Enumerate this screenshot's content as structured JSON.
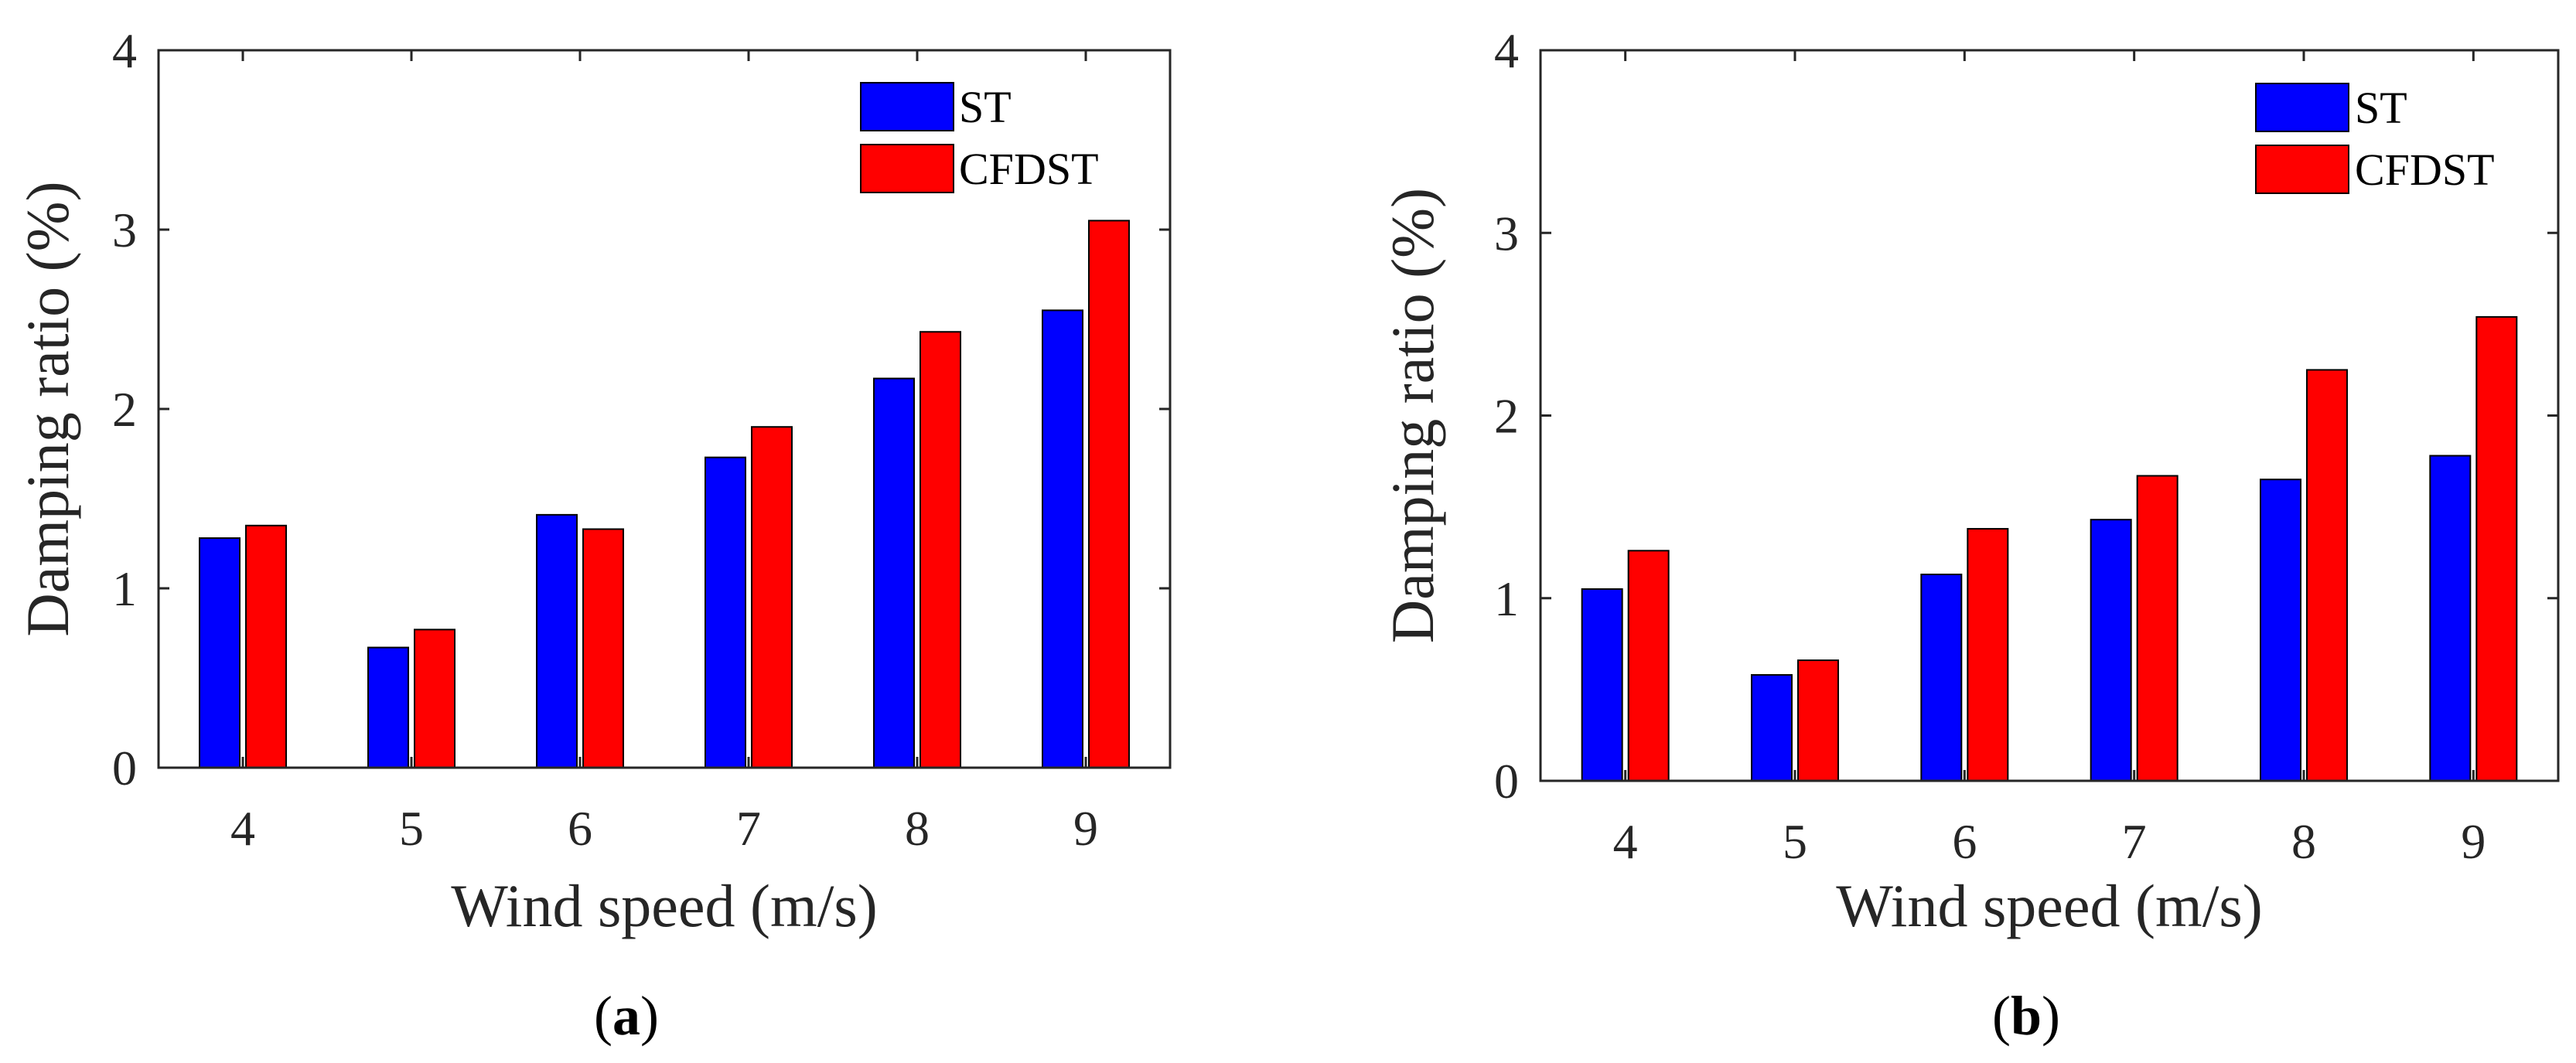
{
  "chart_data": [
    {
      "type": "bar",
      "panel": "a",
      "categories": [
        "4",
        "5",
        "6",
        "7",
        "8",
        "9"
      ],
      "series": [
        {
          "name": "ST",
          "color": "#0000ff",
          "values": [
            1.28,
            0.67,
            1.41,
            1.73,
            2.17,
            2.55
          ]
        },
        {
          "name": "CFDST",
          "color": "#ff0000",
          "values": [
            1.35,
            0.77,
            1.33,
            1.9,
            2.43,
            3.05
          ]
        }
      ],
      "xlabel": "Wind speed (m/s)",
      "ylabel": "Damping ratio (%)",
      "ylim": [
        0,
        4
      ],
      "yticks": [
        "0",
        "1",
        "2",
        "3",
        "4"
      ],
      "legend_position": "top-right",
      "grid": false
    },
    {
      "type": "bar",
      "panel": "b",
      "categories": [
        "4",
        "5",
        "6",
        "7",
        "8",
        "9"
      ],
      "series": [
        {
          "name": "ST",
          "color": "#0000ff",
          "values": [
            1.05,
            0.58,
            1.13,
            1.43,
            1.65,
            1.78
          ]
        },
        {
          "name": "CFDST",
          "color": "#ff0000",
          "values": [
            1.26,
            0.66,
            1.38,
            1.67,
            2.25,
            2.54
          ]
        }
      ],
      "xlabel": "Wind speed (m/s)",
      "ylabel": "Damping ratio (%)",
      "ylim": [
        0,
        4
      ],
      "yticks": [
        "0",
        "1",
        "2",
        "3",
        "4"
      ],
      "legend_position": "top-right",
      "grid": false
    }
  ],
  "panel_labels": [
    {
      "open": "(",
      "letter": "a",
      "close": ")"
    },
    {
      "open": "(",
      "letter": "b",
      "close": ")"
    }
  ]
}
